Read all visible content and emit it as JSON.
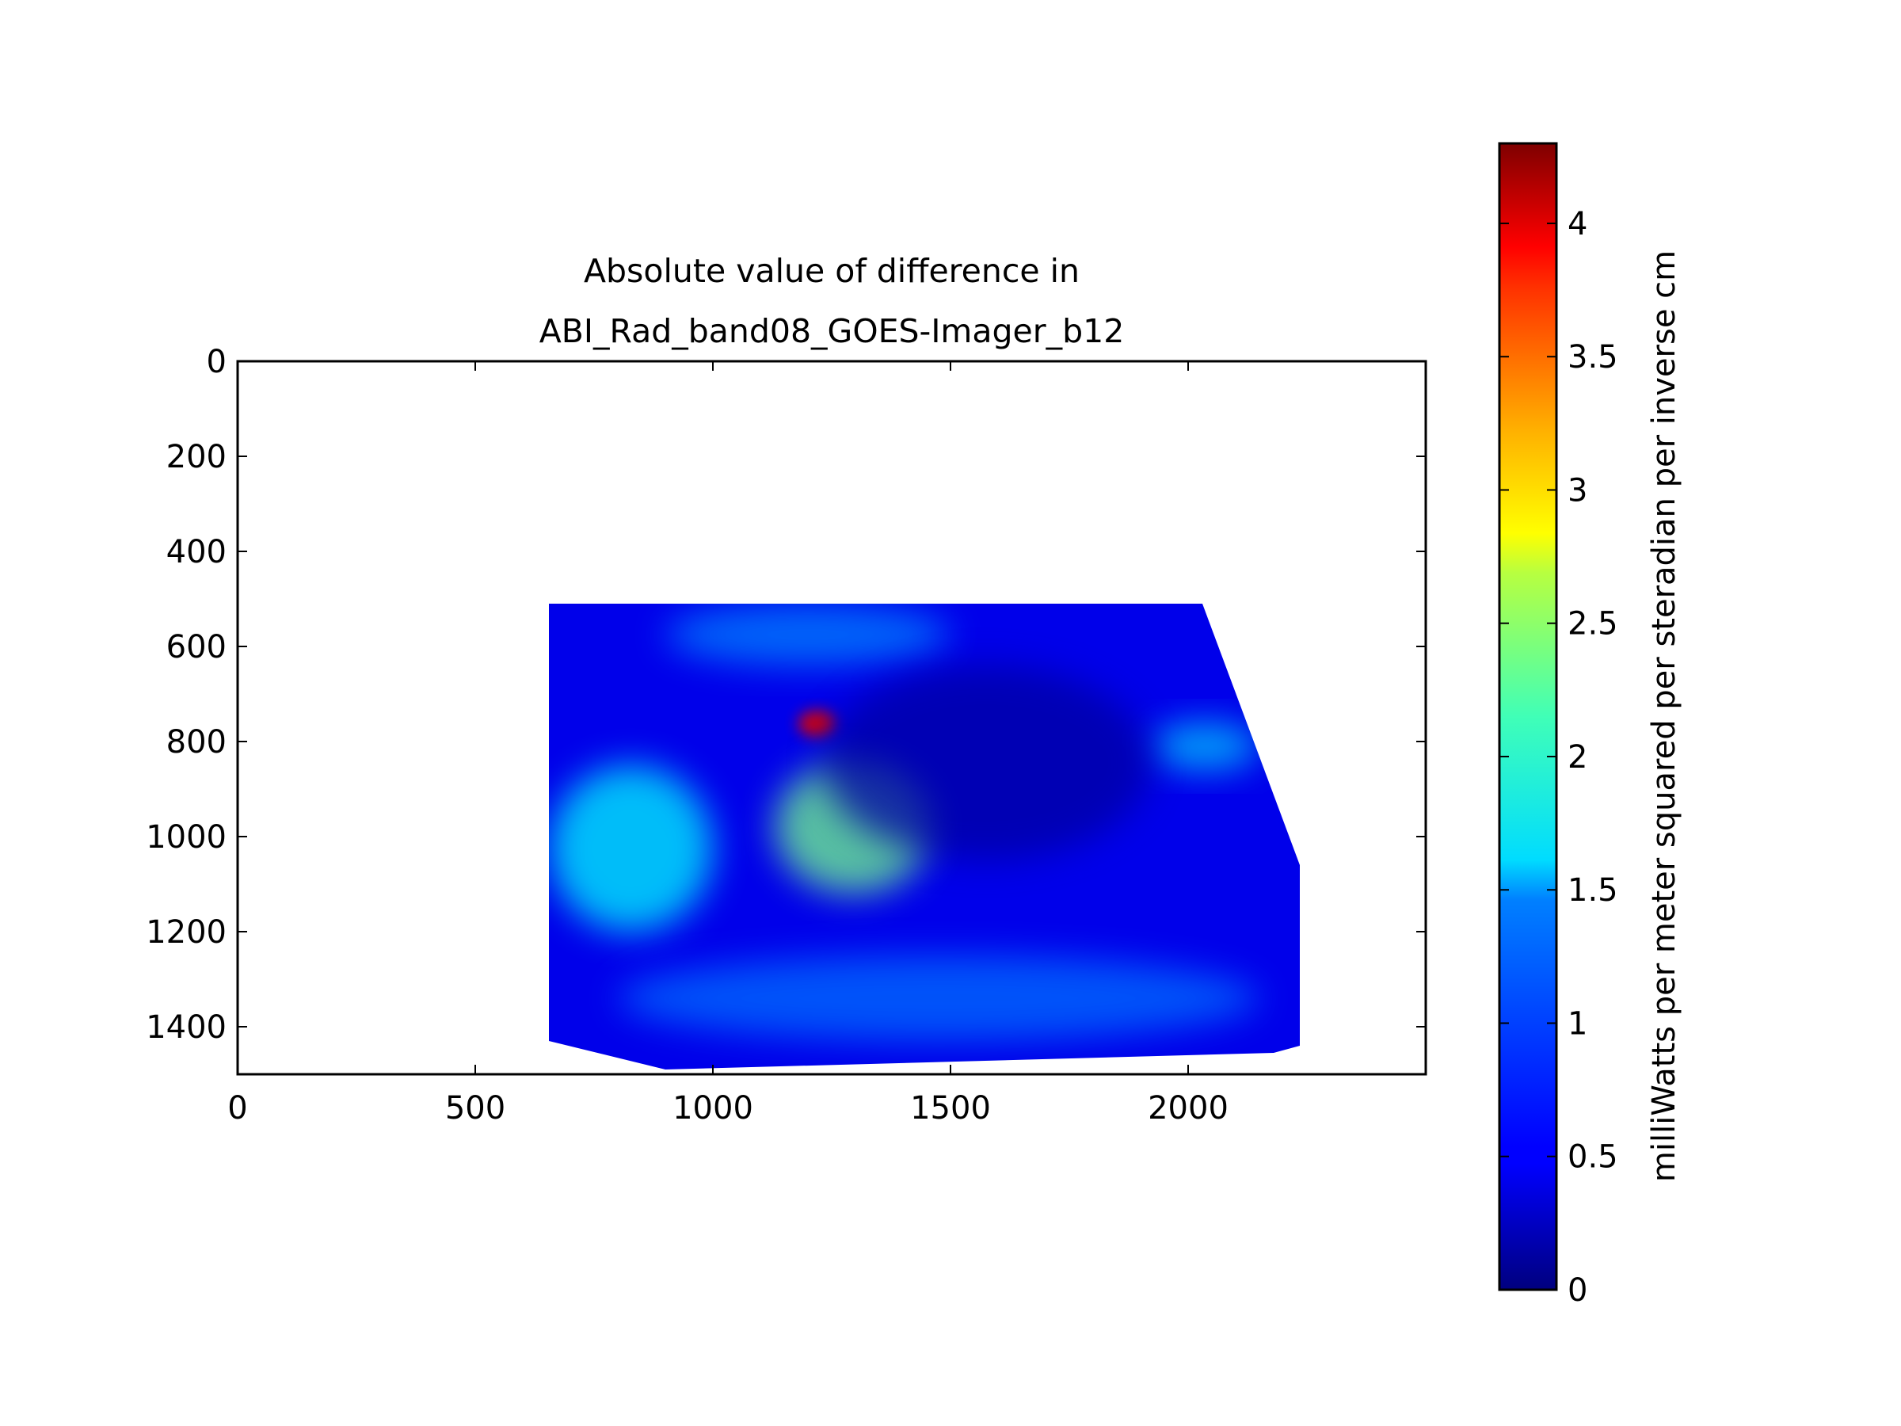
{
  "chart_data": {
    "type": "heatmap",
    "title_lines": [
      "Absolute value of difference in",
      "ABI_Rad_band08_GOES-Imager_b12"
    ],
    "xlabel": "",
    "ylabel": "",
    "xlim": [
      0,
      2500
    ],
    "ylim": [
      1500,
      0
    ],
    "y_inverted": true,
    "x_ticks": [
      0,
      500,
      1000,
      1500,
      2000
    ],
    "y_ticks": [
      0,
      200,
      400,
      600,
      800,
      1000,
      1200,
      1400
    ],
    "colormap": "jet",
    "colorbar": {
      "label": "milliWatts per meter squared per steradian per inverse cm",
      "range": [
        0,
        4.3
      ],
      "ticks": [
        0,
        0.5,
        1,
        1.5,
        2,
        2.5,
        3,
        3.5,
        4
      ],
      "tick_labels": [
        "0",
        "0.5",
        "1",
        "1.5",
        "2",
        "2.5",
        "3",
        "3.5",
        "4"
      ]
    },
    "data_region": {
      "outline": [
        [
          655,
          510
        ],
        [
          2030,
          510
        ],
        [
          2235,
          1060
        ],
        [
          2235,
          1440
        ],
        [
          2180,
          1455
        ],
        [
          900,
          1490
        ],
        [
          655,
          1430
        ]
      ],
      "background_value": 0.45,
      "features": [
        {
          "name": "hot spot",
          "x_range": [
            1180,
            1260
          ],
          "y_range": [
            735,
            790
          ],
          "value": 3.9
        },
        {
          "name": "bright streak",
          "x_range": [
            1130,
            1460
          ],
          "y_range": [
            840,
            1120
          ],
          "value": 2.1
        },
        {
          "name": "left arc bands",
          "x_range": [
            655,
            1000
          ],
          "y_range": [
            850,
            1200
          ],
          "value": 1.6
        },
        {
          "name": "right edge band",
          "x_range": [
            1920,
            2150
          ],
          "y_range": [
            760,
            860
          ],
          "value": 1.4
        },
        {
          "name": "upper band",
          "x_range": [
            900,
            1500
          ],
          "y_range": [
            510,
            640
          ],
          "value": 1.1
        },
        {
          "name": "dark eye region",
          "x_range": [
            1230,
            1920
          ],
          "y_range": [
            640,
            1050
          ],
          "value": 0.15
        },
        {
          "name": "lower arc band",
          "x_range": [
            800,
            2150
          ],
          "y_range": [
            1250,
            1430
          ],
          "value": 1.0
        }
      ]
    }
  }
}
